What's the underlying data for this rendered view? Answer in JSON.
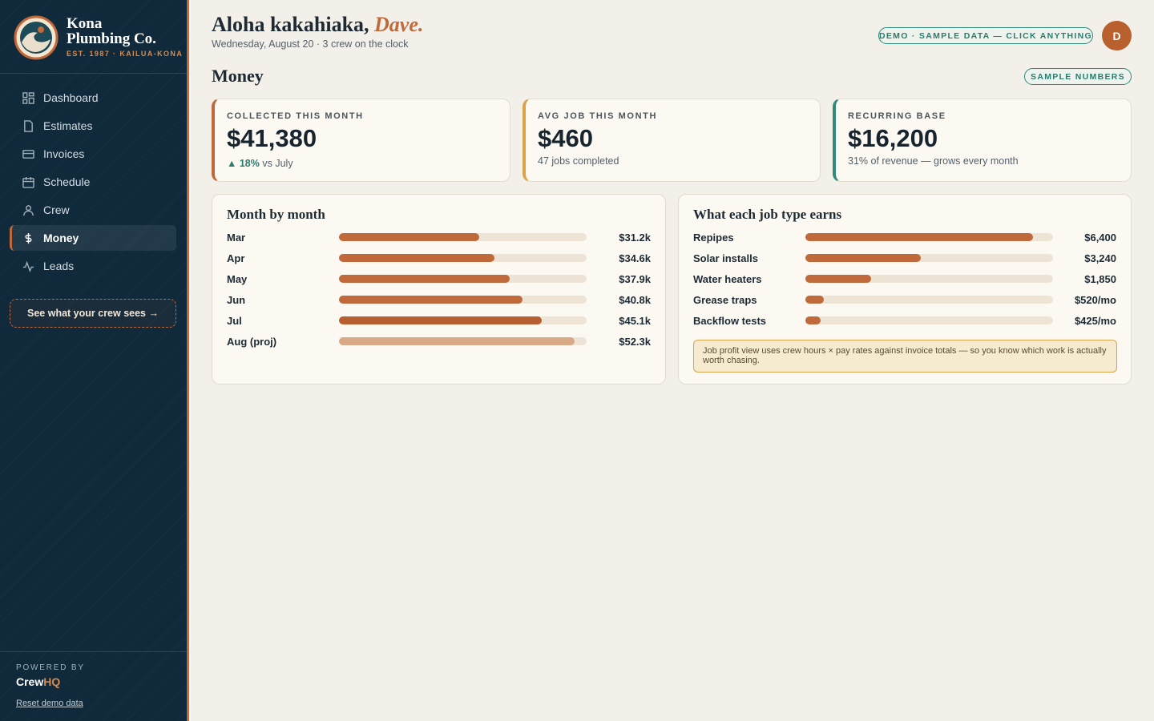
{
  "sidebar": {
    "brand": {
      "name_line1": "Kona",
      "name_line2": "Plumbing Co.",
      "tagline": "EST. 1987 · KAILUA-KONA"
    },
    "nav": [
      "Dashboard",
      "Estimates",
      "Invoices",
      "Schedule",
      "Crew",
      "Money",
      "Leads"
    ],
    "crew_button": "See what your crew sees →",
    "powered_by": "POWERED BY",
    "product": {
      "part1": "Crew",
      "part2": "HQ"
    },
    "reset": "Reset demo data"
  },
  "header": {
    "greeting": "Aloha kakahiaka,",
    "name": "Dave.",
    "subtitle": "Wednesday, August 20 · 3 crew on the clock",
    "demo_badge": "DEMO · SAMPLE DATA — CLICK ANYTHING",
    "avatar": "D"
  },
  "page": {
    "title": "Money",
    "badge": "SAMPLE NUMBERS"
  },
  "kpis": [
    {
      "label": "COLLECTED THIS MONTH",
      "value": "$41,380",
      "change": "18%",
      "change_note": "vs July"
    },
    {
      "label": "AVG JOB THIS MONTH",
      "value": "$460",
      "note": "47 jobs completed"
    },
    {
      "label": "RECURRING BASE",
      "value": "$16,200",
      "note": "31% of revenue — grows every month"
    }
  ],
  "month_by_month": {
    "title": "Month by month",
    "categories": [
      "Mar",
      "Apr",
      "May",
      "Jun",
      "Jul",
      "Aug (proj)"
    ],
    "values": [
      31200,
      34600,
      37900,
      40800,
      45100,
      52300
    ],
    "value_labels": [
      "$31.2k",
      "$34.6k",
      "$37.9k",
      "$40.8k",
      "$45.1k",
      "$52.3k"
    ],
    "colors": [
      "#c0693a",
      "#c0693a",
      "#c0693a",
      "#c0693a",
      "#b85f31",
      "#d8a887"
    ]
  },
  "job_types": {
    "title": "What each job type earns",
    "categories": [
      "Repipes",
      "Solar installs",
      "Water heaters",
      "Grease traps",
      "Backflow tests"
    ],
    "values": [
      6400,
      3240,
      1850,
      520,
      425
    ],
    "value_labels": [
      "$6,400",
      "$3,240",
      "$1,850",
      "$520/mo",
      "$425/mo"
    ],
    "color": "#c0693a",
    "note": "Job profit view uses crew hours × pay rates against invoice totals — so you know which work is actually worth chasing."
  }
}
